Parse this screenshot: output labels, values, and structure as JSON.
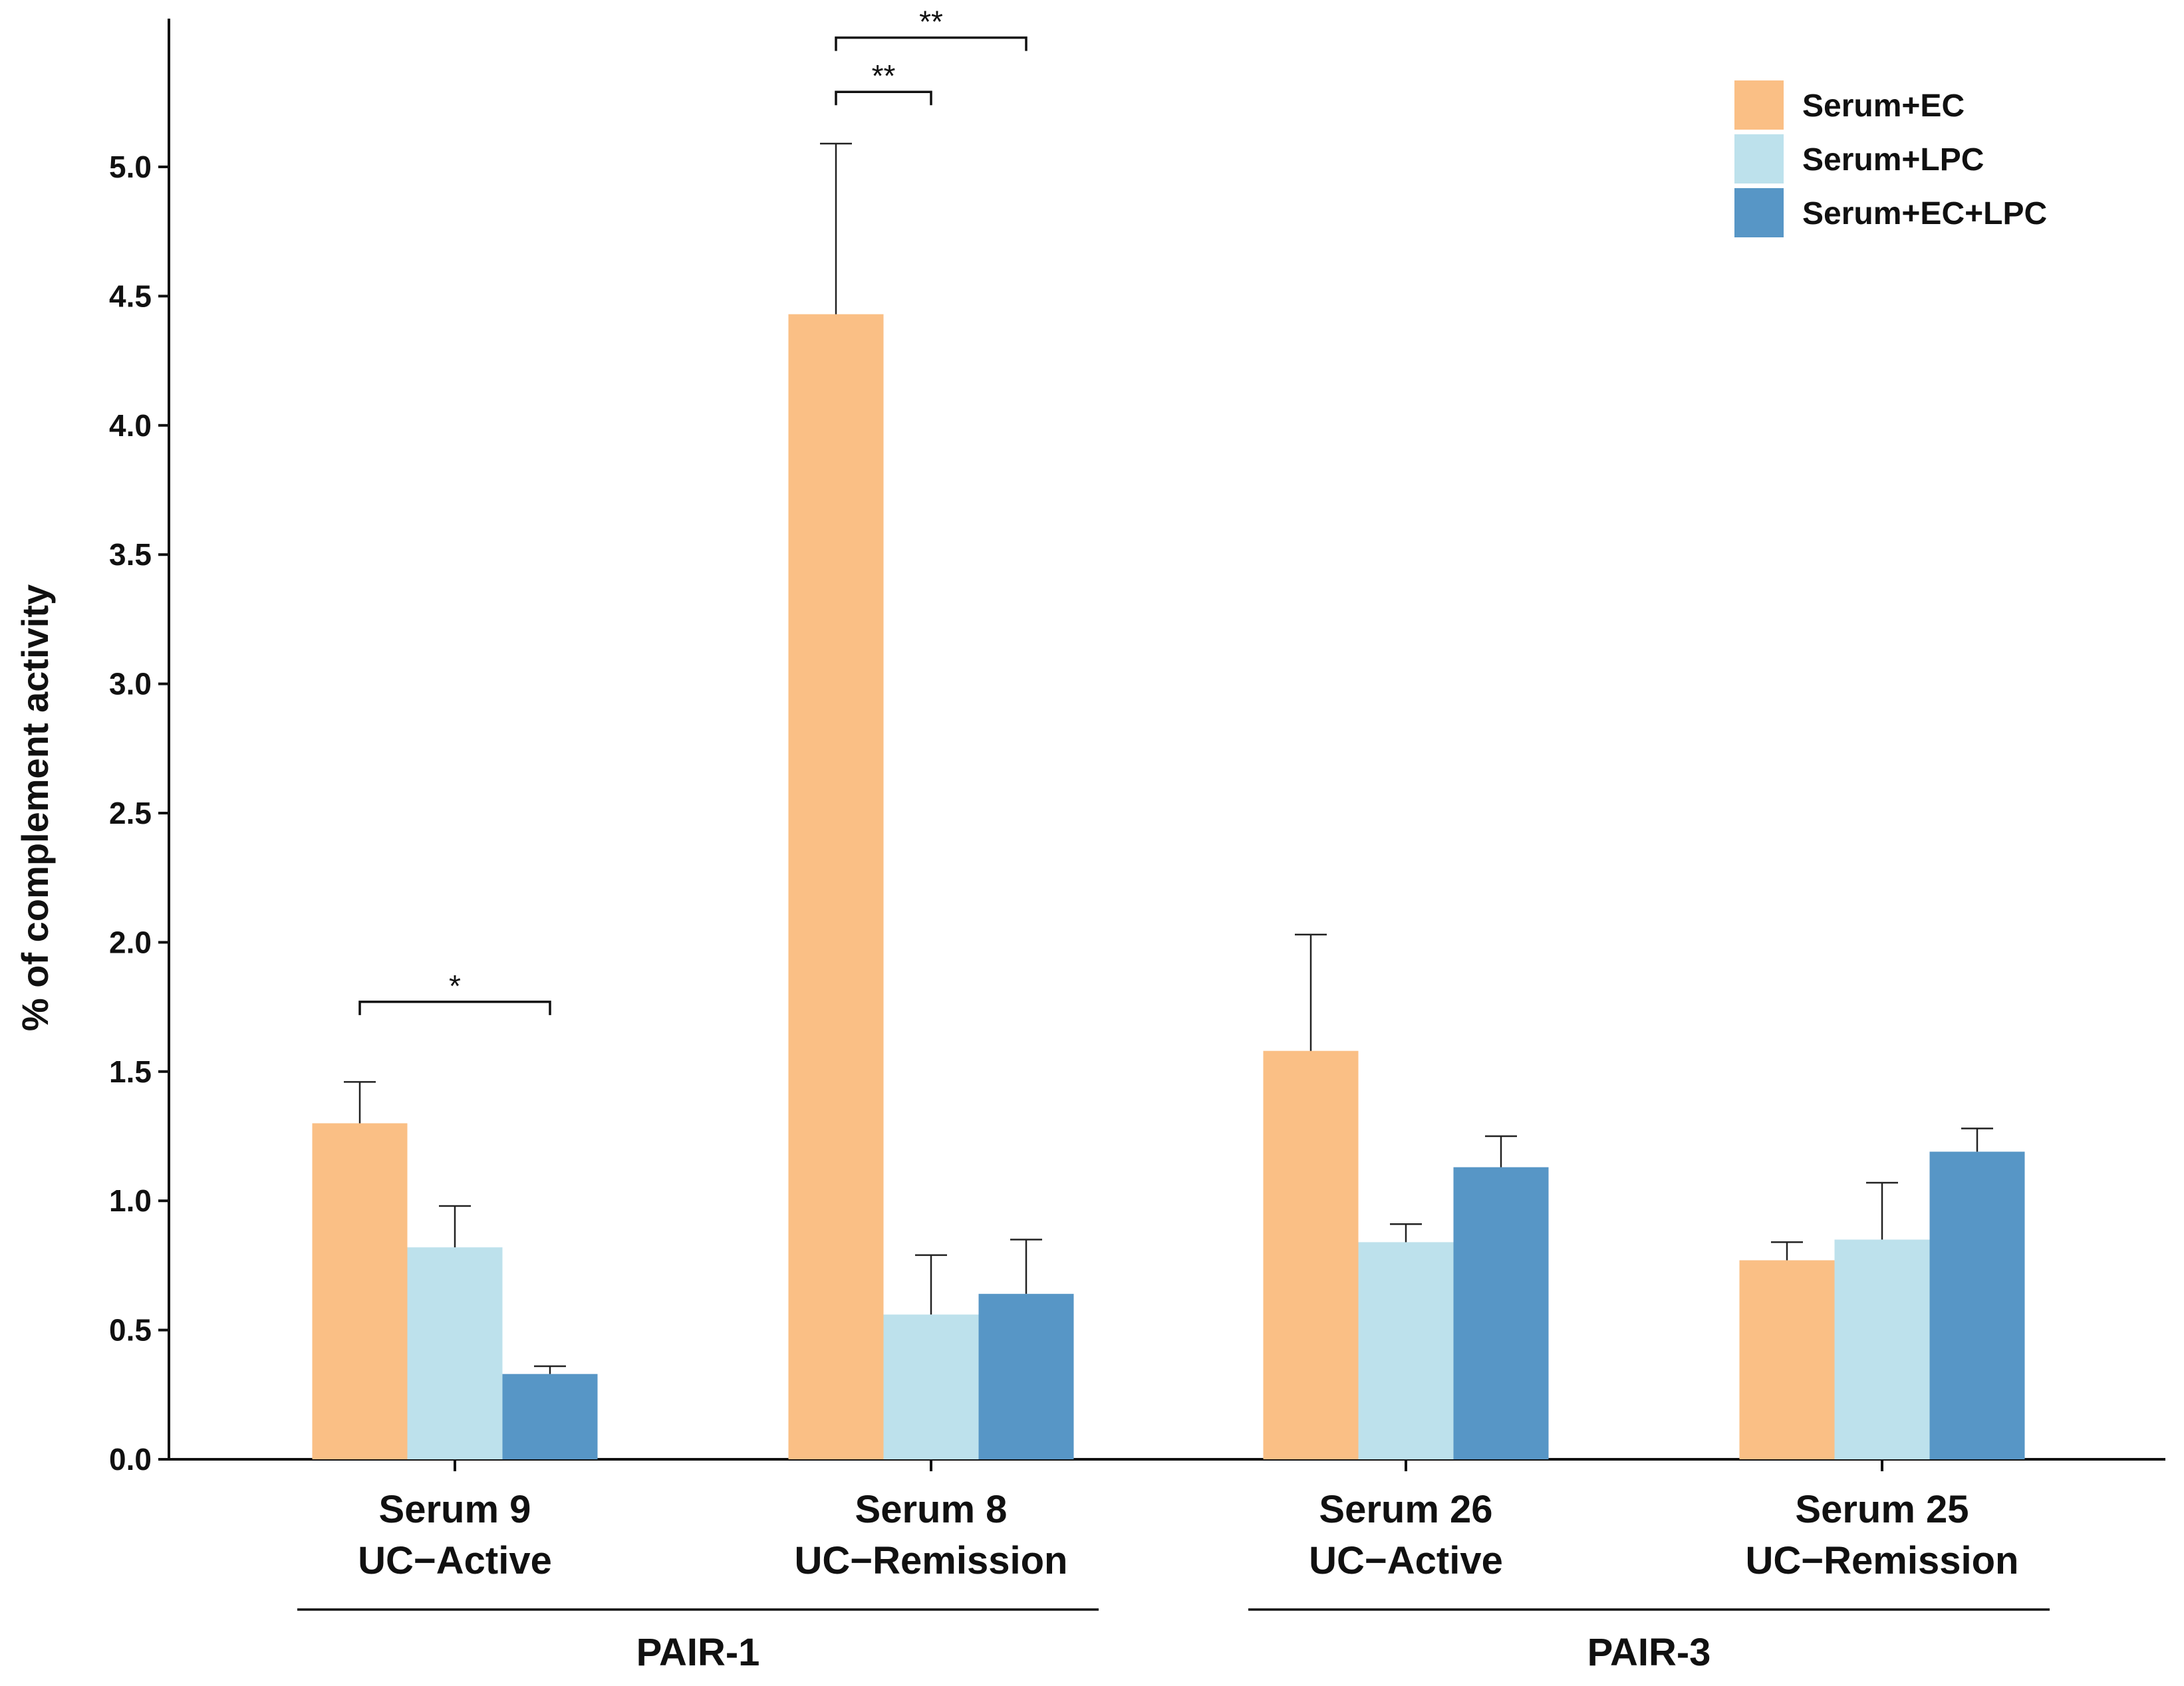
{
  "chart_data": {
    "type": "bar",
    "title": "",
    "xlabel": "",
    "ylabel": "% of complement activity",
    "ylim": [
      0,
      5.6
    ],
    "yticks": [
      "0.0",
      "0.5",
      "1.0",
      "1.5",
      "2.0",
      "2.5",
      "3.0",
      "3.5",
      "4.0",
      "4.5",
      "5.0"
    ],
    "categories": [
      {
        "line1": "Serum 9",
        "line2": "UC−Active"
      },
      {
        "line1": "Serum 8",
        "line2": "UC−Remission"
      },
      {
        "line1": "Serum 26",
        "line2": "UC−Active"
      },
      {
        "line1": "Serum 25",
        "line2": "UC−Remission"
      }
    ],
    "series": [
      {
        "name": "Serum+EC",
        "color": "#FABF85",
        "values": [
          1.3,
          4.43,
          1.58,
          0.77
        ],
        "errors": [
          0.16,
          0.66,
          0.45,
          0.07
        ]
      },
      {
        "name": "Serum+LPC",
        "color": "#BDE1EC",
        "values": [
          0.82,
          0.56,
          0.84,
          0.85
        ],
        "errors": [
          0.16,
          0.23,
          0.07,
          0.22
        ]
      },
      {
        "name": "Serum+EC+LPC",
        "color": "#5796C6",
        "values": [
          0.33,
          0.64,
          1.13,
          1.19
        ],
        "errors": [
          0.03,
          0.21,
          0.12,
          0.09
        ]
      }
    ],
    "groups": [
      {
        "label": "PAIR-1",
        "categories": [
          0,
          1
        ]
      },
      {
        "label": "PAIR-3",
        "categories": [
          2,
          3
        ]
      }
    ],
    "significance": [
      {
        "category": 0,
        "from_series": 0,
        "to_series": 2,
        "y": 1.77,
        "label": "*"
      },
      {
        "category": 1,
        "from_series": 0,
        "to_series": 1,
        "y": 5.29,
        "label": "**"
      },
      {
        "category": 1,
        "from_series": 0,
        "to_series": 2,
        "y": 5.5,
        "label": "**"
      }
    ],
    "legend_position": "top-right",
    "grid": false
  }
}
